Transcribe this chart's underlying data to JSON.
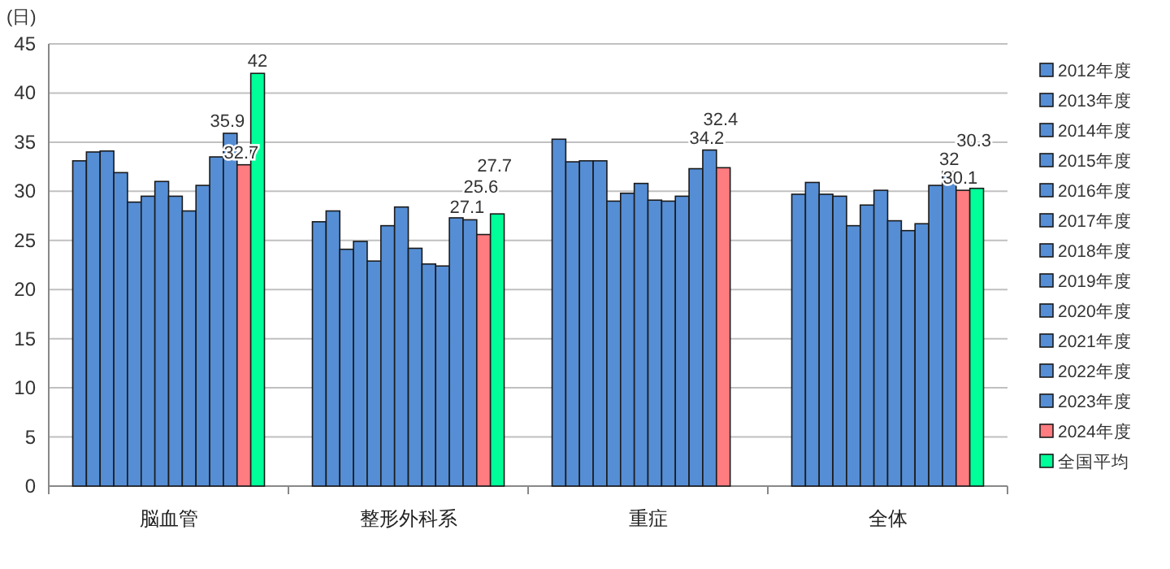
{
  "chart_data": {
    "type": "bar",
    "ylabel": "(日)",
    "categories": [
      "脳血管",
      "整形外科系",
      "重症",
      "全体"
    ],
    "ylim": [
      0,
      45
    ],
    "yticks": [
      0,
      5,
      10,
      15,
      20,
      25,
      30,
      35,
      40,
      45
    ],
    "grid": "y",
    "legend": "right",
    "series": [
      {
        "name": "2012年度",
        "color": "#558ed5",
        "values": [
          33.1,
          26.9,
          35.3,
          29.7
        ]
      },
      {
        "name": "2013年度",
        "color": "#558ed5",
        "values": [
          34.0,
          28.0,
          33.0,
          30.9
        ]
      },
      {
        "name": "2014年度",
        "color": "#558ed5",
        "values": [
          34.1,
          24.1,
          33.1,
          29.7
        ]
      },
      {
        "name": "2015年度",
        "color": "#558ed5",
        "values": [
          31.9,
          24.9,
          33.1,
          29.5
        ]
      },
      {
        "name": "2016年度",
        "color": "#558ed5",
        "values": [
          28.9,
          22.9,
          29.0,
          26.5
        ]
      },
      {
        "name": "2017年度",
        "color": "#558ed5",
        "values": [
          29.5,
          26.5,
          29.8,
          28.6
        ]
      },
      {
        "name": "2018年度",
        "color": "#558ed5",
        "values": [
          31.0,
          28.4,
          30.8,
          30.1
        ]
      },
      {
        "name": "2019年度",
        "color": "#558ed5",
        "values": [
          29.5,
          24.2,
          29.1,
          27.0
        ]
      },
      {
        "name": "2020年度",
        "color": "#558ed5",
        "values": [
          28.0,
          22.6,
          29.0,
          26.0
        ]
      },
      {
        "name": "2021年度",
        "color": "#558ed5",
        "values": [
          30.6,
          22.4,
          29.5,
          26.7
        ]
      },
      {
        "name": "2022年度",
        "color": "#558ed5",
        "values": [
          33.5,
          27.3,
          32.3,
          30.6
        ]
      },
      {
        "name": "2023年度",
        "color": "#558ed5",
        "values": [
          35.9,
          27.1,
          34.2,
          32
        ],
        "value_labels": [
          "35.9",
          "27.1",
          "34.2",
          "32"
        ]
      },
      {
        "name": "2024年度",
        "color": "#ff7c80",
        "values": [
          32.7,
          25.6,
          32.4,
          30.1
        ],
        "value_labels": [
          "32.7",
          "25.6",
          "32.4",
          "30.1"
        ]
      },
      {
        "name": "全国平均",
        "color": "#00ff99",
        "values": [
          42,
          27.7,
          null,
          30.3
        ],
        "value_labels": [
          "42",
          "27.7",
          null,
          "30.3"
        ]
      }
    ]
  }
}
